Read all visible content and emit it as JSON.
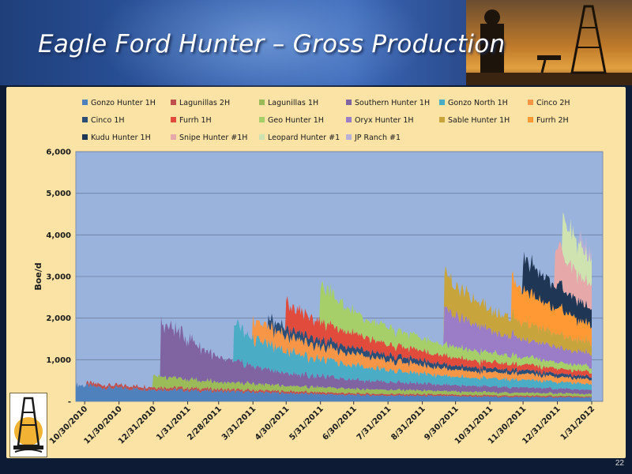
{
  "slide": {
    "title": "Eagle Ford Hunter – Gross Production",
    "page_number": "22"
  },
  "chart_data": {
    "type": "area",
    "stacked": true,
    "ylabel": "Boe/d",
    "ylim": [
      0,
      6000
    ],
    "yticks": [
      0,
      1000,
      2000,
      3000,
      4000,
      5000,
      6000
    ],
    "ytick_labels": [
      "-",
      "1,000",
      "2,000",
      "3,000",
      "4,000",
      "5,000",
      "6,000"
    ],
    "x_range": [
      "2010-10-22",
      "2012-02-10"
    ],
    "xtick_labels": [
      "10/30/2010",
      "11/30/2010",
      "12/31/2010",
      "1/31/2011",
      "2/28/2011",
      "3/31/2011",
      "4/30/2011",
      "5/31/2011",
      "6/30/2011",
      "7/31/2011",
      "8/31/2011",
      "9/30/2011",
      "10/31/2011",
      "11/30/2011",
      "12/31/2011",
      "1/31/2012"
    ],
    "grid": true,
    "legend_position": "top",
    "series": [
      {
        "name": "Gonzo Hunter 1H",
        "color": "#4f81bd",
        "start": "2010-10-22",
        "points": [
          [
            "2010-10-22",
            400
          ],
          [
            "2010-11-15",
            330
          ],
          [
            "2010-12-31",
            290
          ],
          [
            "2011-02-28",
            240
          ],
          [
            "2011-06-30",
            150
          ],
          [
            "2011-10-31",
            110
          ],
          [
            "2012-01-31",
            90
          ]
        ]
      },
      {
        "name": "Lagunillas 2H",
        "color": "#c0504d",
        "start": "2010-11-01",
        "points": [
          [
            "2010-11-01",
            70
          ],
          [
            "2010-12-31",
            60
          ],
          [
            "2011-06-30",
            40
          ],
          [
            "2011-12-31",
            30
          ],
          [
            "2012-01-31",
            25
          ]
        ]
      },
      {
        "name": "Lagunillas 1H",
        "color": "#9bbb59",
        "start": "2010-12-31",
        "points": [
          [
            "2010-12-31",
            280
          ],
          [
            "2011-01-31",
            200
          ],
          [
            "2011-04-30",
            130
          ],
          [
            "2011-09-30",
            80
          ],
          [
            "2012-01-31",
            60
          ]
        ]
      },
      {
        "name": "Southern Hunter 1H",
        "color": "#8064a2",
        "start": "2011-01-07",
        "points": [
          [
            "2011-01-07",
            1300
          ],
          [
            "2011-01-31",
            1000
          ],
          [
            "2011-02-28",
            550
          ],
          [
            "2011-04-30",
            300
          ],
          [
            "2011-08-31",
            160
          ],
          [
            "2012-01-31",
            100
          ]
        ]
      },
      {
        "name": "Gonzo North 1H",
        "color": "#4bacc6",
        "start": "2011-03-14",
        "points": [
          [
            "2011-03-14",
            900
          ],
          [
            "2011-03-31",
            650
          ],
          [
            "2011-05-31",
            400
          ],
          [
            "2011-08-31",
            230
          ],
          [
            "2012-01-31",
            140
          ]
        ]
      },
      {
        "name": "Cinco 2H",
        "color": "#f79646",
        "start": "2011-03-31",
        "points": [
          [
            "2011-03-31",
            450
          ],
          [
            "2011-05-31",
            300
          ],
          [
            "2011-09-30",
            170
          ],
          [
            "2012-01-31",
            110
          ]
        ]
      },
      {
        "name": "Cinco 1H",
        "color": "#2c4d75",
        "start": "2011-04-14",
        "points": [
          [
            "2011-04-14",
            200
          ],
          [
            "2011-06-30",
            140
          ],
          [
            "2011-10-31",
            90
          ],
          [
            "2012-01-31",
            70
          ]
        ]
      },
      {
        "name": "Furrh 1H",
        "color": "#e14b3b",
        "start": "2011-04-30",
        "points": [
          [
            "2011-04-30",
            600
          ],
          [
            "2011-05-31",
            420
          ],
          [
            "2011-07-31",
            260
          ],
          [
            "2011-10-31",
            150
          ],
          [
            "2012-01-31",
            110
          ]
        ]
      },
      {
        "name": "Geo Hunter 1H",
        "color": "#a6cf6a",
        "start": "2011-05-31",
        "points": [
          [
            "2011-05-31",
            900
          ],
          [
            "2011-06-30",
            500
          ],
          [
            "2011-08-31",
            300
          ],
          [
            "2011-11-30",
            180
          ],
          [
            "2012-01-31",
            130
          ]
        ]
      },
      {
        "name": "Oryx Hunter 1H",
        "color": "#9a7cc7",
        "start": "2011-09-20",
        "points": [
          [
            "2011-09-20",
            800
          ],
          [
            "2011-10-31",
            520
          ],
          [
            "2011-12-31",
            350
          ],
          [
            "2012-01-31",
            300
          ]
        ]
      },
      {
        "name": "Sable Hunter 1H",
        "color": "#c8a43c",
        "start": "2011-09-20",
        "points": [
          [
            "2011-09-20",
            850
          ],
          [
            "2011-10-31",
            500
          ],
          [
            "2011-12-31",
            320
          ],
          [
            "2012-01-31",
            260
          ]
        ]
      },
      {
        "name": "Furrh 2H",
        "color": "#ff9933",
        "start": "2011-11-20",
        "points": [
          [
            "2011-11-20",
            900
          ],
          [
            "2011-12-15",
            700
          ],
          [
            "2012-01-31",
            420
          ]
        ]
      },
      {
        "name": "Kudu Hunter 1H",
        "color": "#1f3654",
        "start": "2011-11-30",
        "points": [
          [
            "2011-11-30",
            750
          ],
          [
            "2011-12-31",
            550
          ],
          [
            "2012-01-31",
            380
          ]
        ]
      },
      {
        "name": "Snipe Hunter #1H",
        "color": "#e6a8a8",
        "start": "2011-12-29",
        "points": [
          [
            "2011-12-29",
            900
          ],
          [
            "2012-01-15",
            650
          ],
          [
            "2012-01-31",
            550
          ]
        ]
      },
      {
        "name": "Leopard Hunter #1",
        "color": "#cfe3b0",
        "start": "2012-01-05",
        "points": [
          [
            "2012-01-05",
            900
          ],
          [
            "2012-01-31",
            650
          ]
        ]
      },
      {
        "name": "JP Ranch #1",
        "color": "#b9b0d6",
        "start": "2012-01-20",
        "points": [
          [
            "2012-01-20",
            200
          ],
          [
            "2012-01-31",
            180
          ]
        ]
      }
    ]
  }
}
